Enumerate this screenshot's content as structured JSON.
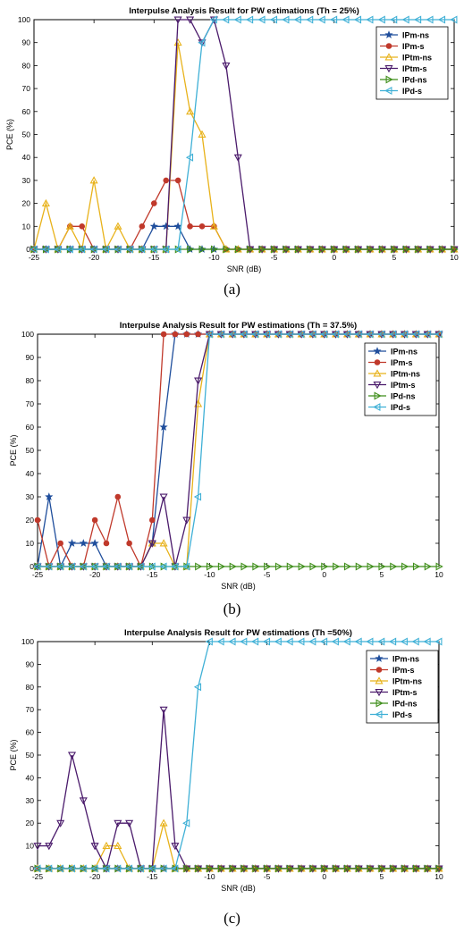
{
  "series_styles": [
    {
      "name": "IPm-ns",
      "color": "#1f4e9c",
      "marker": "star"
    },
    {
      "name": "IPm-s",
      "color": "#c0392b",
      "marker": "circle"
    },
    {
      "name": "IPtm-ns",
      "color": "#e8b21a",
      "marker": "triangle-up"
    },
    {
      "name": "IPtm-s",
      "color": "#4a1a6b",
      "marker": "triangle-down"
    },
    {
      "name": "IPd-ns",
      "color": "#3f8e1a",
      "marker": "triangle-right"
    },
    {
      "name": "IPd-s",
      "color": "#3fb0d6",
      "marker": "triangle-left"
    }
  ],
  "chart_data": [
    {
      "type": "line",
      "title": "Interpulse Analysis Result for PW estimations (Th = 25%)",
      "caption": "(a)",
      "xlabel": "SNR (dB)",
      "ylabel": "PCE (%)",
      "xlim": [
        -25,
        10
      ],
      "ylim": [
        0,
        100
      ],
      "xticks": [
        -25,
        -20,
        -15,
        -10,
        -5,
        0,
        5,
        10
      ],
      "yticks": [
        0,
        10,
        20,
        30,
        40,
        50,
        60,
        70,
        80,
        90,
        100
      ],
      "legend": "top-right",
      "x": [
        -25,
        -24,
        -23,
        -22,
        -21,
        -20,
        -19,
        -18,
        -17,
        -16,
        -15,
        -14,
        -13,
        -12,
        -11,
        -10,
        -9,
        -8,
        -7,
        -6,
        -5,
        -4,
        -3,
        -2,
        -1,
        0,
        1,
        2,
        3,
        4,
        5,
        6,
        7,
        8,
        9,
        10
      ],
      "series": [
        {
          "name": "IPm-ns",
          "values": [
            0,
            0,
            0,
            0,
            0,
            0,
            0,
            0,
            0,
            0,
            10,
            10,
            10,
            0,
            0,
            0,
            0,
            0,
            0,
            0,
            0,
            0,
            0,
            0,
            0,
            0,
            0,
            0,
            0,
            0,
            0,
            0,
            0,
            0,
            0,
            0
          ]
        },
        {
          "name": "IPm-s",
          "values": [
            0,
            0,
            0,
            10,
            10,
            0,
            0,
            0,
            0,
            10,
            20,
            30,
            30,
            10,
            10,
            10,
            0,
            0,
            0,
            0,
            0,
            0,
            0,
            0,
            0,
            0,
            0,
            0,
            0,
            0,
            0,
            0,
            0,
            0,
            0,
            0
          ]
        },
        {
          "name": "IPtm-ns",
          "values": [
            0,
            20,
            0,
            10,
            0,
            30,
            0,
            10,
            0,
            0,
            0,
            0,
            90,
            60,
            50,
            10,
            0,
            0,
            0,
            0,
            0,
            0,
            0,
            0,
            0,
            0,
            0,
            0,
            0,
            0,
            0,
            0,
            0,
            0,
            0,
            0
          ]
        },
        {
          "name": "IPtm-s",
          "values": [
            0,
            0,
            0,
            0,
            0,
            0,
            0,
            0,
            0,
            0,
            0,
            0,
            100,
            100,
            90,
            100,
            80,
            40,
            0,
            0,
            0,
            0,
            0,
            0,
            0,
            0,
            0,
            0,
            0,
            0,
            0,
            0,
            0,
            0,
            0,
            0
          ]
        },
        {
          "name": "IPd-ns",
          "values": [
            0,
            0,
            0,
            0,
            0,
            0,
            0,
            0,
            0,
            0,
            0,
            0,
            0,
            0,
            0,
            0,
            0,
            0,
            0,
            0,
            0,
            0,
            0,
            0,
            0,
            0,
            0,
            0,
            0,
            0,
            0,
            0,
            0,
            0,
            0,
            0
          ]
        },
        {
          "name": "IPd-s",
          "values": [
            0,
            0,
            0,
            0,
            0,
            0,
            0,
            0,
            0,
            0,
            0,
            0,
            0,
            40,
            90,
            100,
            100,
            100,
            100,
            100,
            100,
            100,
            100,
            100,
            100,
            100,
            100,
            100,
            100,
            100,
            100,
            100,
            100,
            100,
            100,
            100
          ]
        }
      ]
    },
    {
      "type": "line",
      "title": "Interpulse Analysis Result for PW estimations (Th = 37.5%)",
      "caption": "(b)",
      "xlabel": "SNR (dB)",
      "ylabel": "PCE (%)",
      "xlim": [
        -25,
        10
      ],
      "ylim": [
        0,
        100
      ],
      "xticks": [
        -25,
        -20,
        -15,
        -10,
        -5,
        0,
        5,
        10
      ],
      "yticks": [
        0,
        10,
        20,
        30,
        40,
        50,
        60,
        70,
        80,
        90,
        100
      ],
      "legend": "top-right",
      "x": [
        -25,
        -24,
        -23,
        -22,
        -21,
        -20,
        -19,
        -18,
        -17,
        -16,
        -15,
        -14,
        -13,
        -12,
        -11,
        -10,
        -9,
        -8,
        -7,
        -6,
        -5,
        -4,
        -3,
        -2,
        -1,
        0,
        1,
        2,
        3,
        4,
        5,
        6,
        7,
        8,
        9,
        10
      ],
      "series": [
        {
          "name": "IPm-ns",
          "values": [
            0,
            30,
            0,
            10,
            10,
            10,
            0,
            0,
            0,
            0,
            10,
            60,
            100,
            100,
            100,
            100,
            100,
            100,
            100,
            100,
            100,
            100,
            100,
            100,
            100,
            100,
            100,
            100,
            100,
            100,
            100,
            100,
            100,
            100,
            100,
            100
          ]
        },
        {
          "name": "IPm-s",
          "values": [
            20,
            0,
            10,
            0,
            0,
            20,
            10,
            30,
            10,
            0,
            20,
            100,
            100,
            100,
            100,
            100,
            100,
            100,
            100,
            100,
            100,
            100,
            100,
            100,
            100,
            100,
            100,
            100,
            100,
            100,
            100,
            100,
            100,
            100,
            100,
            100
          ]
        },
        {
          "name": "IPtm-ns",
          "values": [
            0,
            0,
            0,
            0,
            0,
            0,
            0,
            0,
            0,
            0,
            10,
            10,
            0,
            0,
            70,
            100,
            100,
            100,
            100,
            100,
            100,
            100,
            100,
            100,
            100,
            100,
            100,
            100,
            100,
            100,
            100,
            100,
            100,
            100,
            100,
            100
          ]
        },
        {
          "name": "IPtm-s",
          "values": [
            0,
            0,
            0,
            0,
            0,
            0,
            0,
            0,
            0,
            0,
            10,
            30,
            0,
            20,
            80,
            100,
            100,
            100,
            100,
            100,
            100,
            100,
            100,
            100,
            100,
            100,
            100,
            100,
            100,
            100,
            100,
            100,
            100,
            100,
            100,
            100
          ]
        },
        {
          "name": "IPd-ns",
          "values": [
            0,
            0,
            0,
            0,
            0,
            0,
            0,
            0,
            0,
            0,
            0,
            0,
            0,
            0,
            0,
            0,
            0,
            0,
            0,
            0,
            0,
            0,
            0,
            0,
            0,
            0,
            0,
            0,
            0,
            0,
            0,
            0,
            0,
            0,
            0,
            0
          ]
        },
        {
          "name": "IPd-s",
          "values": [
            0,
            0,
            0,
            0,
            0,
            0,
            0,
            0,
            0,
            0,
            0,
            0,
            0,
            0,
            30,
            100,
            100,
            100,
            100,
            100,
            100,
            100,
            100,
            100,
            100,
            100,
            100,
            100,
            100,
            100,
            100,
            100,
            100,
            100,
            100,
            100
          ]
        }
      ]
    },
    {
      "type": "line",
      "title": "Interpulse Analysis Result for PW estimations (Th =50%)",
      "caption": "(c)",
      "xlabel": "SNR (dB)",
      "ylabel": "PCE (%)",
      "xlim": [
        -25,
        10
      ],
      "ylim": [
        0,
        100
      ],
      "xticks": [
        -25,
        -20,
        -15,
        -10,
        -5,
        0,
        5,
        10
      ],
      "yticks": [
        0,
        10,
        20,
        30,
        40,
        50,
        60,
        70,
        80,
        90,
        100
      ],
      "legend": "top-right",
      "x": [
        -25,
        -24,
        -23,
        -22,
        -21,
        -20,
        -19,
        -18,
        -17,
        -16,
        -15,
        -14,
        -13,
        -12,
        -11,
        -10,
        -9,
        -8,
        -7,
        -6,
        -5,
        -4,
        -3,
        -2,
        -1,
        0,
        1,
        2,
        3,
        4,
        5,
        6,
        7,
        8,
        9,
        10
      ],
      "series": [
        {
          "name": "IPm-ns",
          "values": [
            0,
            0,
            0,
            0,
            0,
            0,
            0,
            0,
            0,
            0,
            0,
            0,
            0,
            0,
            0,
            0,
            0,
            0,
            0,
            0,
            0,
            0,
            0,
            0,
            0,
            0,
            0,
            0,
            0,
            0,
            0,
            0,
            0,
            0,
            0,
            0
          ]
        },
        {
          "name": "IPm-s",
          "values": [
            0,
            0,
            0,
            0,
            0,
            0,
            0,
            0,
            0,
            0,
            0,
            0,
            0,
            0,
            0,
            0,
            0,
            0,
            0,
            0,
            0,
            0,
            0,
            0,
            0,
            0,
            0,
            0,
            0,
            0,
            0,
            0,
            0,
            0,
            0,
            0
          ]
        },
        {
          "name": "IPtm-ns",
          "values": [
            0,
            0,
            0,
            0,
            0,
            0,
            10,
            10,
            0,
            0,
            0,
            20,
            0,
            0,
            0,
            0,
            0,
            0,
            0,
            0,
            0,
            0,
            0,
            0,
            0,
            0,
            0,
            0,
            0,
            0,
            0,
            0,
            0,
            0,
            0,
            0
          ]
        },
        {
          "name": "IPtm-s",
          "values": [
            10,
            10,
            20,
            50,
            30,
            10,
            0,
            20,
            20,
            0,
            0,
            70,
            10,
            0,
            0,
            0,
            0,
            0,
            0,
            0,
            0,
            0,
            0,
            0,
            0,
            0,
            0,
            0,
            0,
            0,
            0,
            0,
            0,
            0,
            0,
            0
          ]
        },
        {
          "name": "IPd-ns",
          "values": [
            0,
            0,
            0,
            0,
            0,
            0,
            0,
            0,
            0,
            0,
            0,
            0,
            0,
            0,
            0,
            0,
            0,
            0,
            0,
            0,
            0,
            0,
            0,
            0,
            0,
            0,
            0,
            0,
            0,
            0,
            0,
            0,
            0,
            0,
            0,
            0
          ]
        },
        {
          "name": "IPd-s",
          "values": [
            0,
            0,
            0,
            0,
            0,
            0,
            0,
            0,
            0,
            0,
            0,
            0,
            0,
            20,
            80,
            100,
            100,
            100,
            100,
            100,
            100,
            100,
            100,
            100,
            100,
            100,
            100,
            100,
            100,
            100,
            100,
            100,
            100,
            100,
            100,
            100
          ]
        }
      ]
    }
  ]
}
